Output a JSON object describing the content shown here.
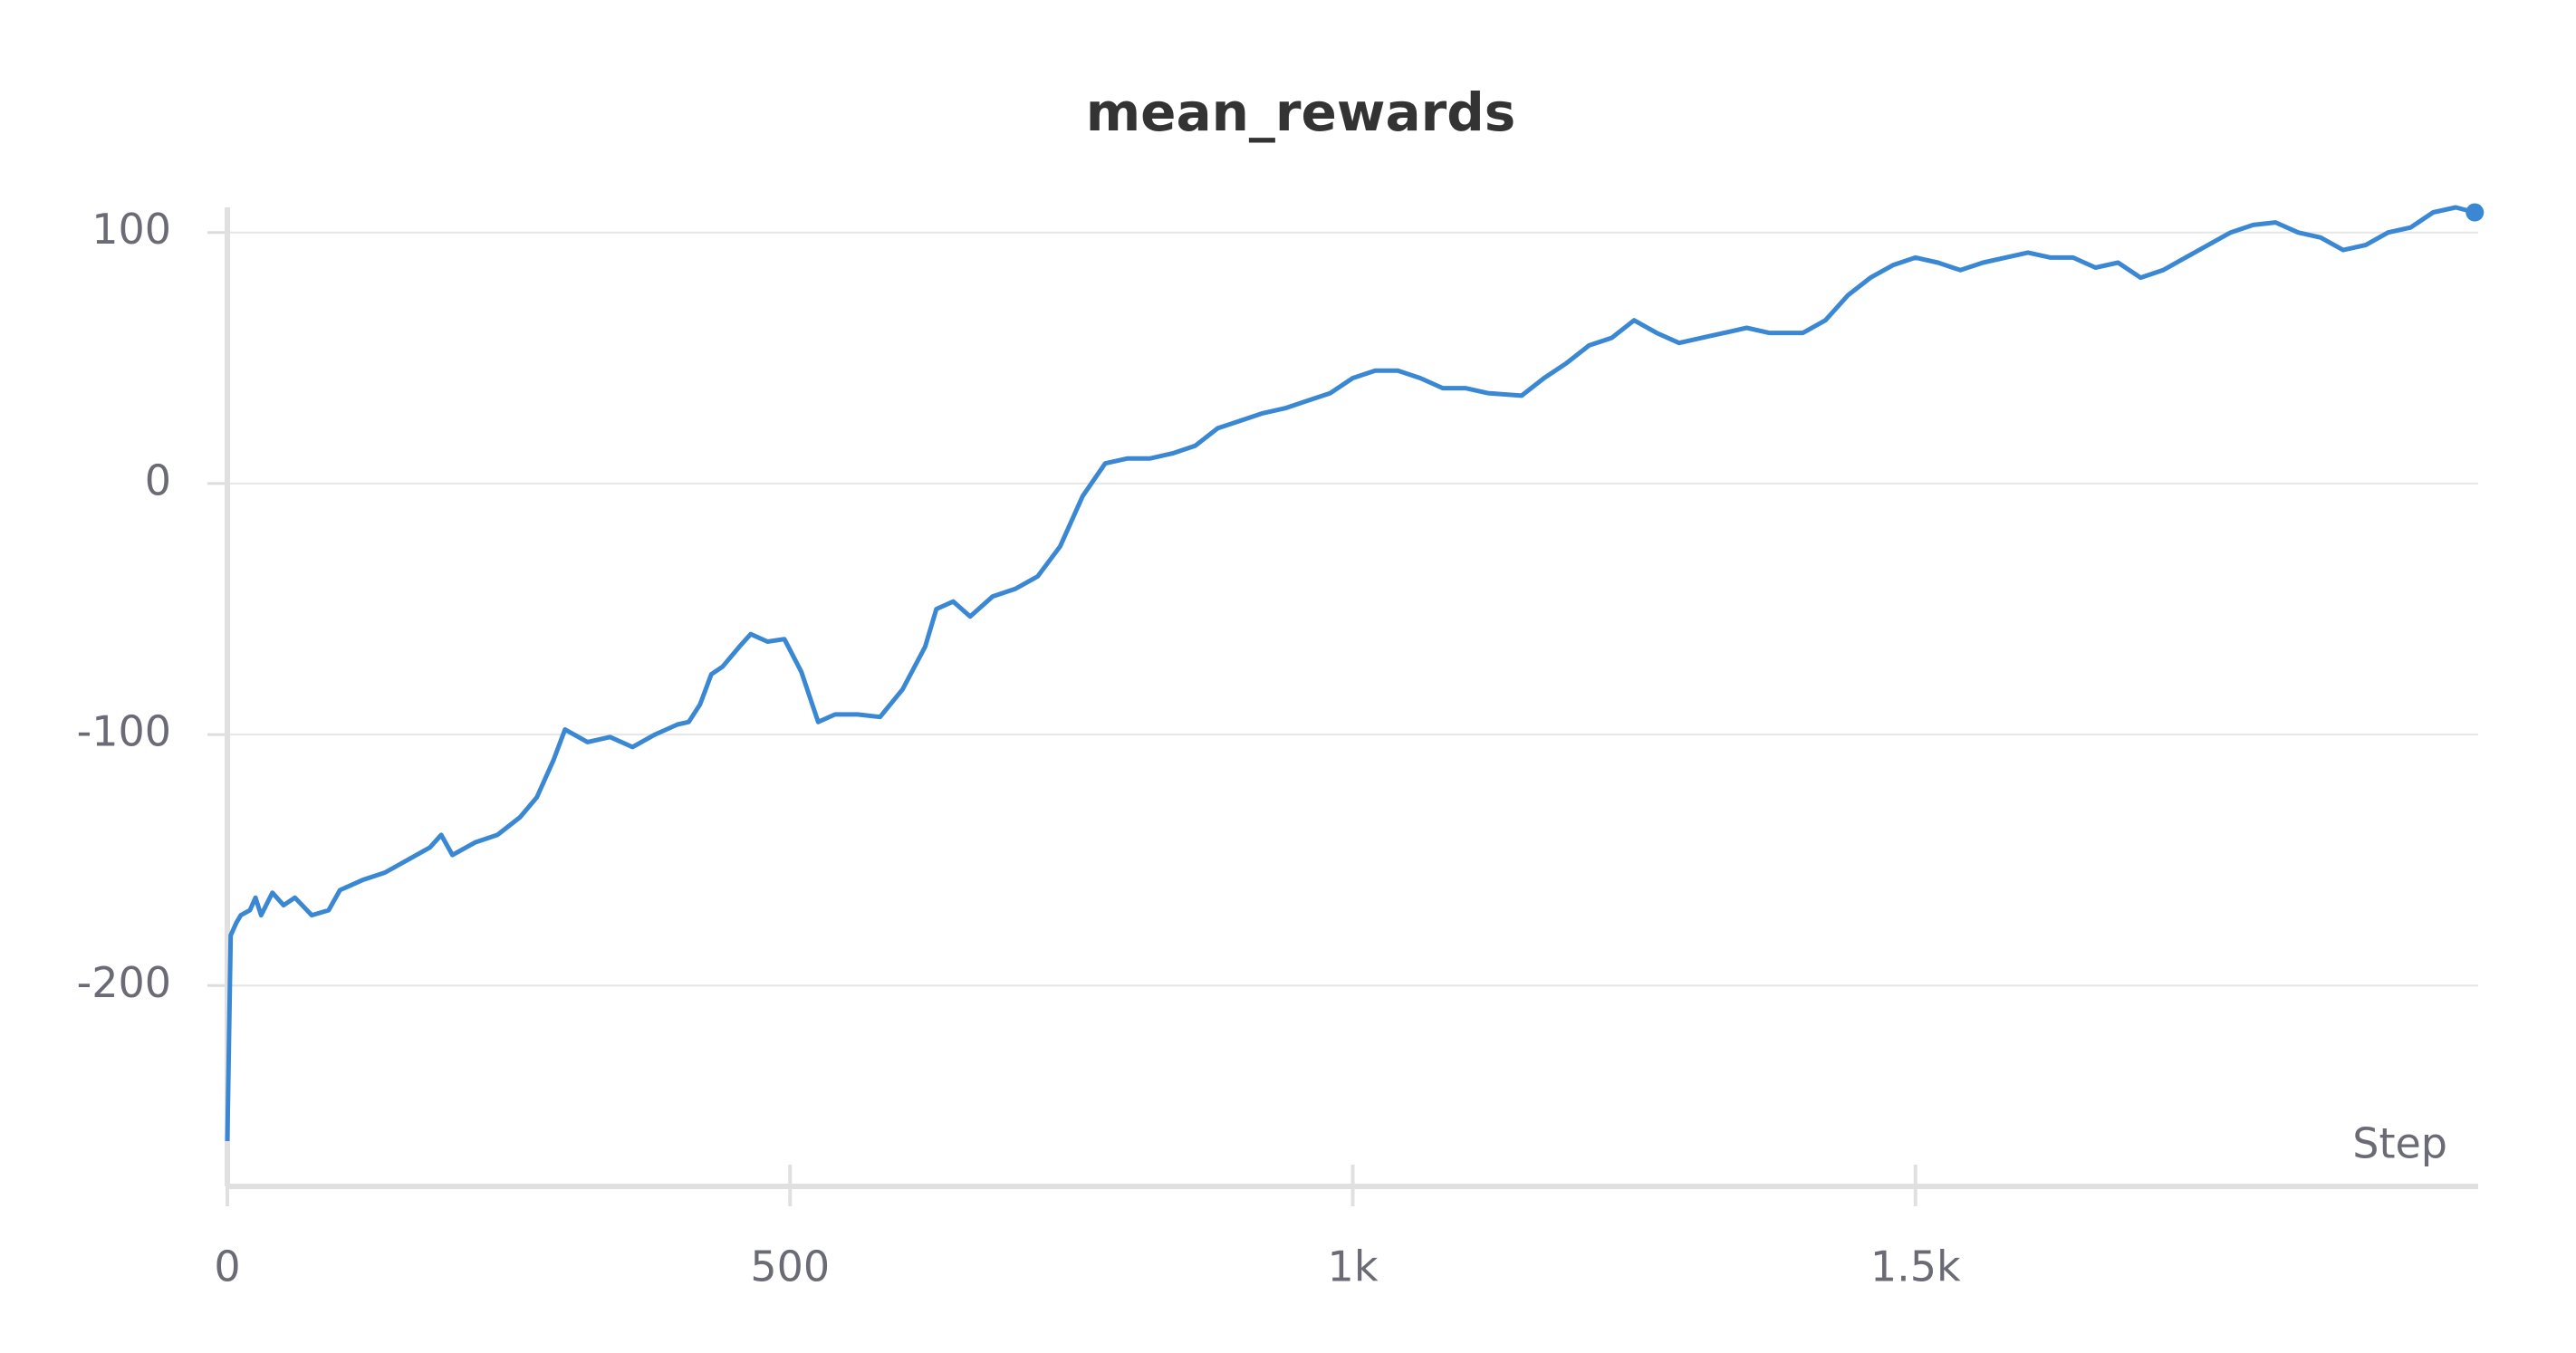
{
  "chart_data": {
    "type": "line",
    "title": "mean_rewards",
    "x_label": "Step",
    "series": [
      {
        "name": "mean_rewards",
        "color": "#3a87d4",
        "x": [
          0,
          3,
          8,
          12,
          20,
          25,
          30,
          40,
          50,
          60,
          75,
          90,
          100,
          120,
          140,
          160,
          180,
          190,
          200,
          220,
          240,
          260,
          275,
          290,
          300,
          320,
          340,
          360,
          380,
          400,
          410,
          420,
          430,
          440,
          455,
          465,
          480,
          495,
          510,
          525,
          540,
          560,
          580,
          600,
          620,
          630,
          645,
          660,
          680,
          700,
          720,
          740,
          760,
          780,
          800,
          820,
          840,
          860,
          880,
          900,
          920,
          940,
          960,
          980,
          1000,
          1020,
          1040,
          1060,
          1080,
          1100,
          1120,
          1150,
          1170,
          1190,
          1210,
          1230,
          1250,
          1270,
          1290,
          1310,
          1330,
          1350,
          1370,
          1400,
          1420,
          1440,
          1460,
          1480,
          1500,
          1520,
          1540,
          1560,
          1580,
          1600,
          1620,
          1640,
          1660,
          1680,
          1700,
          1720,
          1740,
          1760,
          1780,
          1800,
          1820,
          1840,
          1860,
          1880,
          1900,
          1920,
          1940,
          1960,
          1980,
          1997
        ],
        "values": [
          -262,
          -180,
          -175,
          -172,
          -170,
          -165,
          -172,
          -163,
          -168,
          -165,
          -172,
          -170,
          -162,
          -158,
          -155,
          -150,
          -145,
          -140,
          -148,
          -143,
          -140,
          -133,
          -125,
          -110,
          -98,
          -103,
          -101,
          -105,
          -100,
          -96,
          -95,
          -88,
          -76,
          -73,
          -65,
          -60,
          -63,
          -62,
          -75,
          -95,
          -92,
          -92,
          -93,
          -82,
          -65,
          -50,
          -47,
          -53,
          -45,
          -42,
          -37,
          -25,
          -5,
          8,
          10,
          10,
          12,
          15,
          22,
          25,
          28,
          30,
          33,
          36,
          42,
          45,
          45,
          42,
          38,
          38,
          36,
          35,
          42,
          48,
          55,
          58,
          65,
          60,
          56,
          58,
          60,
          62,
          60,
          60,
          65,
          75,
          82,
          87,
          90,
          88,
          85,
          88,
          90,
          92,
          90,
          90,
          86,
          88,
          82,
          85,
          90,
          95,
          100,
          103,
          104,
          100,
          98,
          93,
          95,
          100,
          102,
          108,
          110,
          108
        ]
      }
    ],
    "xlim": [
      0,
      2000
    ],
    "ylim": [
      -280,
      110
    ],
    "xticks": [
      0,
      500,
      {
        "value": 1000,
        "label": "1k"
      },
      {
        "value": 1500,
        "label": "1.5k"
      }
    ],
    "yticks": [
      100,
      0,
      -100,
      -200
    ],
    "grid": true
  }
}
